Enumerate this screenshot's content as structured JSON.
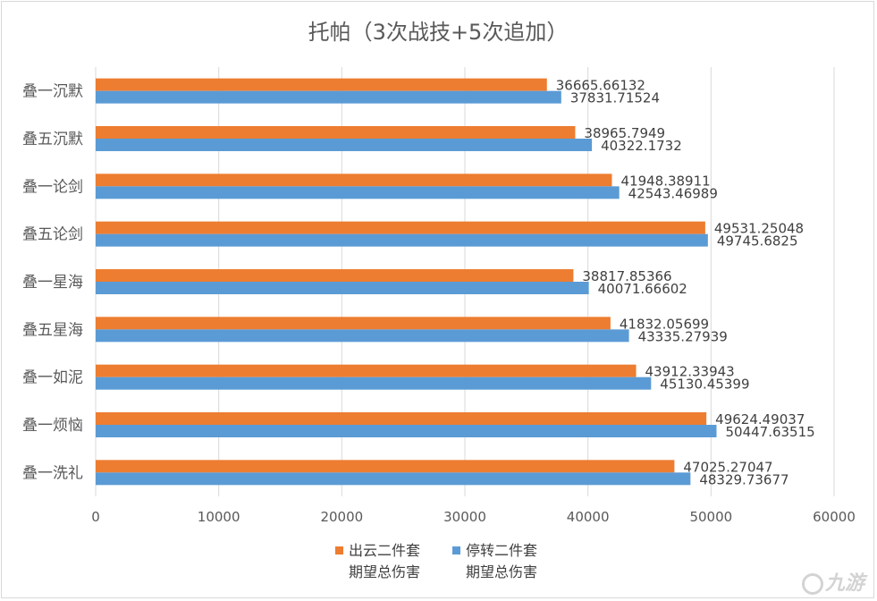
{
  "chart_data": {
    "type": "bar",
    "orientation": "horizontal",
    "title": "托帕（3次战技+5次追加）",
    "categories": [
      "叠一沉默",
      "叠五沉默",
      "叠一论剑",
      "叠五论剑",
      "叠一星海",
      "叠五星海",
      "叠一如泥",
      "叠一烦恼",
      "叠一洗礼"
    ],
    "series": [
      {
        "name": "出云二件套",
        "name_line1": "出云二件套",
        "name_line2": "期望总伤害",
        "color": "#ed7d31",
        "values": [
          36665.66132,
          38965.7949,
          41948.38911,
          49531.25048,
          38817.85366,
          41832.05699,
          43912.33943,
          49624.49037,
          47025.27047
        ],
        "labels": [
          "36665.66132",
          "38965.7949",
          "41948.38911",
          "49531.25048",
          "38817.85366",
          "41832.05699",
          "43912.33943",
          "49624.49037",
          "47025.27047"
        ]
      },
      {
        "name": "停转二件套",
        "name_line1": "停转二件套",
        "name_line2": "期望总伤害",
        "color": "#5b9bd5",
        "values": [
          37831.71524,
          40322.1732,
          42543.46989,
          49745.6825,
          40071.66602,
          43335.27939,
          45130.45399,
          50447.63515,
          48329.73677
        ],
        "labels": [
          "37831.71524",
          "40322.1732",
          "42543.46989",
          "49745.6825",
          "40071.66602",
          "43335.27939",
          "45130.45399",
          "50447.63515",
          "48329.73677"
        ]
      }
    ],
    "xlim": [
      0,
      60000
    ],
    "x_ticks": [
      0,
      10000,
      20000,
      30000,
      40000,
      50000,
      60000
    ],
    "x_tick_labels": [
      "0",
      "10000",
      "20000",
      "30000",
      "40000",
      "50000",
      "60000"
    ],
    "xlabel": "",
    "ylabel": "",
    "grid": "vertical",
    "legend_position": "bottom",
    "colors": {
      "gridline": "#d9d9d9",
      "text": "#595959",
      "title": "#595959"
    }
  },
  "watermark": {
    "text": "九游"
  }
}
